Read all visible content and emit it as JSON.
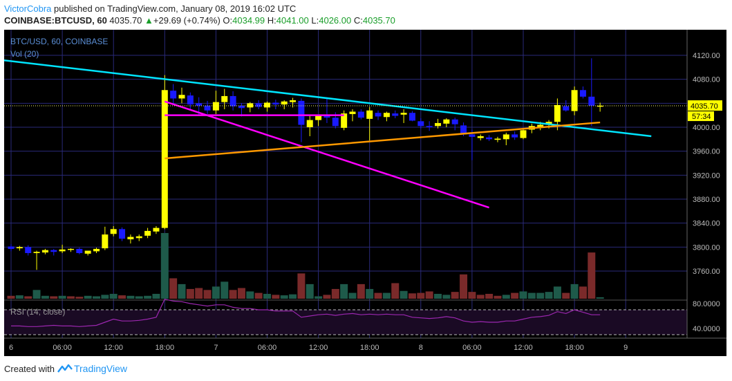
{
  "header": {
    "author": "VictorCobra",
    "published": "published on TradingView.com, January 08, 2019 16:02 UTC",
    "symbol": "COINBASE:BTCUSD, 60",
    "last": "4035.70",
    "change": "+29.69 (+0.74%)",
    "open_label": "O:",
    "open": "4034.99",
    "high_label": "H:",
    "high": "4041.00",
    "low_label": "L:",
    "low": "4026.00",
    "close_label": "C:",
    "close": "4035.70"
  },
  "footer": {
    "created": "Created with",
    "brand": "TradingView"
  },
  "colors": {
    "background": "#000000",
    "grid": "#2a2a7a",
    "bull": "#ffff00",
    "bear": "#1a1aff",
    "vol_bull": "#1e5a4a",
    "vol_bear": "#7a2a2a",
    "cyan_line": "#00e5ff",
    "magenta_line": "#ff00ff",
    "orange_line": "#ff9900",
    "rsi_line": "#9c27b0",
    "price_tag": "#ffff00",
    "axis_text": "#bdbdbd"
  },
  "chart_data": {
    "type": "candlestick",
    "title": "BTC/USD, 60, COINBASE",
    "volume_label": "Vol (20)",
    "rsi_label": "RSI (14, close)",
    "price_tag": "4035.70",
    "time_tag": "57:34",
    "ylim": [
      3730,
      4130
    ],
    "y_ticks": [
      "4120.00",
      "4080.00",
      "4040.00",
      "4000.00",
      "3960.00",
      "3920.00",
      "3880.00",
      "3840.00",
      "3800.00",
      "3760.00"
    ],
    "rsi_ticks": [
      "80.0000",
      "40.0000"
    ],
    "rsi_ylim": [
      20,
      100
    ],
    "x_ticks": [
      {
        "i": 0,
        "label": "6"
      },
      {
        "i": 6,
        "label": "06:00"
      },
      {
        "i": 12,
        "label": "12:00"
      },
      {
        "i": 18,
        "label": "18:00"
      },
      {
        "i": 24,
        "label": "7"
      },
      {
        "i": 30,
        "label": "06:00"
      },
      {
        "i": 36,
        "label": "12:00"
      },
      {
        "i": 42,
        "label": "18:00"
      },
      {
        "i": 48,
        "label": "8"
      },
      {
        "i": 54,
        "label": "06:00"
      },
      {
        "i": 60,
        "label": "12:00"
      },
      {
        "i": 66,
        "label": "18:00"
      },
      {
        "i": 72,
        "label": "9"
      }
    ],
    "candles": [
      {
        "o": 3801,
        "h": 3805,
        "l": 3793,
        "c": 3797
      },
      {
        "o": 3798,
        "h": 3802,
        "l": 3794,
        "c": 3800
      },
      {
        "o": 3800,
        "h": 3803,
        "l": 3786,
        "c": 3790
      },
      {
        "o": 3790,
        "h": 3794,
        "l": 3762,
        "c": 3792
      },
      {
        "o": 3791,
        "h": 3797,
        "l": 3788,
        "c": 3795
      },
      {
        "o": 3795,
        "h": 3797,
        "l": 3786,
        "c": 3792
      },
      {
        "o": 3793,
        "h": 3804,
        "l": 3790,
        "c": 3796
      },
      {
        "o": 3796,
        "h": 3798,
        "l": 3792,
        "c": 3797
      },
      {
        "o": 3797,
        "h": 3799,
        "l": 3788,
        "c": 3790
      },
      {
        "o": 3789,
        "h": 3794,
        "l": 3786,
        "c": 3794
      },
      {
        "o": 3793,
        "h": 3799,
        "l": 3790,
        "c": 3797
      },
      {
        "o": 3798,
        "h": 3834,
        "l": 3795,
        "c": 3821
      },
      {
        "o": 3822,
        "h": 3835,
        "l": 3818,
        "c": 3830
      },
      {
        "o": 3830,
        "h": 3833,
        "l": 3810,
        "c": 3814
      },
      {
        "o": 3813,
        "h": 3821,
        "l": 3806,
        "c": 3817
      },
      {
        "o": 3815,
        "h": 3821,
        "l": 3810,
        "c": 3818
      },
      {
        "o": 3819,
        "h": 3832,
        "l": 3815,
        "c": 3827
      },
      {
        "o": 3826,
        "h": 3835,
        "l": 3822,
        "c": 3832
      },
      {
        "o": 3832,
        "h": 4087,
        "l": 3830,
        "c": 4062
      },
      {
        "o": 4061,
        "h": 4072,
        "l": 4040,
        "c": 4048
      },
      {
        "o": 4048,
        "h": 4066,
        "l": 4040,
        "c": 4054
      },
      {
        "o": 4053,
        "h": 4058,
        "l": 4030,
        "c": 4038
      },
      {
        "o": 4040,
        "h": 4050,
        "l": 4020,
        "c": 4036
      },
      {
        "o": 4036,
        "h": 4044,
        "l": 4022,
        "c": 4028
      },
      {
        "o": 4028,
        "h": 4061,
        "l": 4022,
        "c": 4042
      },
      {
        "o": 4042,
        "h": 4064,
        "l": 4030,
        "c": 4052
      },
      {
        "o": 4052,
        "h": 4060,
        "l": 4028,
        "c": 4035
      },
      {
        "o": 4036,
        "h": 4040,
        "l": 4018,
        "c": 4032
      },
      {
        "o": 4033,
        "h": 4042,
        "l": 4025,
        "c": 4040
      },
      {
        "o": 4040,
        "h": 4045,
        "l": 4030,
        "c": 4034
      },
      {
        "o": 4033,
        "h": 4043,
        "l": 4026,
        "c": 4041
      },
      {
        "o": 4041,
        "h": 4046,
        "l": 4030,
        "c": 4038
      },
      {
        "o": 4038,
        "h": 4045,
        "l": 4030,
        "c": 4043
      },
      {
        "o": 4042,
        "h": 4049,
        "l": 4033,
        "c": 4045
      },
      {
        "o": 4044,
        "h": 4048,
        "l": 3975,
        "c": 4004
      },
      {
        "o": 4000,
        "h": 4020,
        "l": 3985,
        "c": 4012
      },
      {
        "o": 4012,
        "h": 4020,
        "l": 4002,
        "c": 4020
      },
      {
        "o": 4021,
        "h": 4050,
        "l": 4007,
        "c": 4016
      },
      {
        "o": 4016,
        "h": 4025,
        "l": 3998,
        "c": 4002
      },
      {
        "o": 3999,
        "h": 4028,
        "l": 3995,
        "c": 4023
      },
      {
        "o": 4022,
        "h": 4030,
        "l": 4010,
        "c": 4026
      },
      {
        "o": 4026,
        "h": 4030,
        "l": 4013,
        "c": 4016
      },
      {
        "o": 4014,
        "h": 4034,
        "l": 3978,
        "c": 4028
      },
      {
        "o": 4024,
        "h": 4028,
        "l": 4012,
        "c": 4018
      },
      {
        "o": 4017,
        "h": 4026,
        "l": 4010,
        "c": 4024
      },
      {
        "o": 4023,
        "h": 4028,
        "l": 4015,
        "c": 4019
      },
      {
        "o": 4021,
        "h": 4030,
        "l": 4007,
        "c": 4024
      },
      {
        "o": 4024,
        "h": 4027,
        "l": 4010,
        "c": 4011
      },
      {
        "o": 4010,
        "h": 4015,
        "l": 3998,
        "c": 4002
      },
      {
        "o": 4002,
        "h": 4010,
        "l": 3994,
        "c": 4000
      },
      {
        "o": 4002,
        "h": 4014,
        "l": 3998,
        "c": 4007
      },
      {
        "o": 4006,
        "h": 4015,
        "l": 4000,
        "c": 4013
      },
      {
        "o": 4013,
        "h": 4016,
        "l": 3995,
        "c": 4005
      },
      {
        "o": 4003,
        "h": 4008,
        "l": 3985,
        "c": 3988
      },
      {
        "o": 3988,
        "h": 3996,
        "l": 3945,
        "c": 3984
      },
      {
        "o": 3982,
        "h": 3988,
        "l": 3978,
        "c": 3985
      },
      {
        "o": 3983,
        "h": 3987,
        "l": 3977,
        "c": 3980
      },
      {
        "o": 3979,
        "h": 3984,
        "l": 3975,
        "c": 3981
      },
      {
        "o": 3980,
        "h": 3991,
        "l": 3970,
        "c": 3988
      },
      {
        "o": 3988,
        "h": 3993,
        "l": 3979,
        "c": 3983
      },
      {
        "o": 3982,
        "h": 3999,
        "l": 3980,
        "c": 3995
      },
      {
        "o": 3996,
        "h": 4006,
        "l": 3990,
        "c": 4002
      },
      {
        "o": 4000,
        "h": 4009,
        "l": 3995,
        "c": 4004
      },
      {
        "o": 4004,
        "h": 4012,
        "l": 3998,
        "c": 4009
      },
      {
        "o": 4009,
        "h": 4048,
        "l": 3995,
        "c": 4037
      },
      {
        "o": 4035,
        "h": 4045,
        "l": 4026,
        "c": 4028
      },
      {
        "o": 4027,
        "h": 4068,
        "l": 4020,
        "c": 4062
      },
      {
        "o": 4062,
        "h": 4068,
        "l": 4048,
        "c": 4051
      },
      {
        "o": 4051,
        "h": 4115,
        "l": 4002,
        "c": 4036
      },
      {
        "o": 4035,
        "h": 4041,
        "l": 4026,
        "c": 4036
      }
    ],
    "candle_x": [
      0,
      1,
      2,
      3,
      4,
      5,
      6,
      7,
      8,
      9,
      10,
      11,
      12,
      13,
      14,
      15,
      16,
      17,
      18,
      19,
      20,
      21,
      22,
      23,
      24,
      25,
      26,
      27,
      28,
      29,
      30,
      31,
      32,
      33,
      34,
      35,
      36,
      37,
      38,
      39,
      40,
      41,
      42,
      43,
      44,
      45,
      46,
      47,
      48,
      49,
      50,
      51,
      52,
      53,
      54,
      55,
      56,
      57,
      58,
      59,
      60,
      61,
      62,
      63,
      64,
      65,
      66,
      67,
      68,
      69
    ],
    "volume": [
      {
        "v": 6,
        "up": false
      },
      {
        "v": 7,
        "up": true
      },
      {
        "v": 5,
        "up": false
      },
      {
        "v": 18,
        "up": true
      },
      {
        "v": 6,
        "up": true
      },
      {
        "v": 5,
        "up": false
      },
      {
        "v": 6,
        "up": true
      },
      {
        "v": 5,
        "up": false
      },
      {
        "v": 4,
        "up": false
      },
      {
        "v": 6,
        "up": true
      },
      {
        "v": 5,
        "up": true
      },
      {
        "v": 8,
        "up": true
      },
      {
        "v": 10,
        "up": true
      },
      {
        "v": 7,
        "up": false
      },
      {
        "v": 6,
        "up": true
      },
      {
        "v": 5,
        "up": true
      },
      {
        "v": 6,
        "up": true
      },
      {
        "v": 10,
        "up": true
      },
      {
        "v": 135,
        "up": true
      },
      {
        "v": 42,
        "up": false
      },
      {
        "v": 30,
        "up": true
      },
      {
        "v": 20,
        "up": false
      },
      {
        "v": 22,
        "up": false
      },
      {
        "v": 18,
        "up": false
      },
      {
        "v": 25,
        "up": true
      },
      {
        "v": 35,
        "up": true
      },
      {
        "v": 18,
        "up": false
      },
      {
        "v": 22,
        "up": false
      },
      {
        "v": 15,
        "up": true
      },
      {
        "v": 12,
        "up": false
      },
      {
        "v": 10,
        "up": true
      },
      {
        "v": 8,
        "up": false
      },
      {
        "v": 7,
        "up": true
      },
      {
        "v": 9,
        "up": true
      },
      {
        "v": 52,
        "up": false
      },
      {
        "v": 30,
        "up": true
      },
      {
        "v": 5,
        "up": true
      },
      {
        "v": 8,
        "up": false
      },
      {
        "v": 20,
        "up": false
      },
      {
        "v": 30,
        "up": true
      },
      {
        "v": 12,
        "up": true
      },
      {
        "v": 30,
        "up": false
      },
      {
        "v": 20,
        "up": true
      },
      {
        "v": 12,
        "up": false
      },
      {
        "v": 12,
        "up": true
      },
      {
        "v": 32,
        "up": false
      },
      {
        "v": 16,
        "up": true
      },
      {
        "v": 11,
        "up": false
      },
      {
        "v": 12,
        "up": false
      },
      {
        "v": 15,
        "up": false
      },
      {
        "v": 10,
        "up": true
      },
      {
        "v": 8,
        "up": true
      },
      {
        "v": 14,
        "up": false
      },
      {
        "v": 50,
        "up": false
      },
      {
        "v": 14,
        "up": false
      },
      {
        "v": 8,
        "up": false
      },
      {
        "v": 10,
        "up": false
      },
      {
        "v": 6,
        "up": false
      },
      {
        "v": 8,
        "up": true
      },
      {
        "v": 12,
        "up": false
      },
      {
        "v": 15,
        "up": true
      },
      {
        "v": 12,
        "up": true
      },
      {
        "v": 12,
        "up": true
      },
      {
        "v": 14,
        "up": true
      },
      {
        "v": 25,
        "up": true
      },
      {
        "v": 12,
        "up": false
      },
      {
        "v": 30,
        "up": true
      },
      {
        "v": 25,
        "up": false
      },
      {
        "v": 95,
        "up": false
      },
      {
        "v": 3,
        "up": true
      }
    ],
    "rsi": [
      44,
      44,
      43,
      43,
      44,
      45,
      44,
      44,
      43,
      44,
      45,
      50,
      55,
      52,
      52,
      53,
      55,
      58,
      87,
      84,
      83,
      80,
      78,
      76,
      78,
      78,
      74,
      72,
      72,
      70,
      70,
      68,
      68,
      68,
      58,
      60,
      62,
      63,
      61,
      63,
      64,
      62,
      63,
      62,
      63,
      62,
      62,
      58,
      57,
      56,
      57,
      59,
      57,
      52,
      50,
      51,
      50,
      50,
      52,
      52,
      55,
      58,
      59,
      61,
      67,
      64,
      70,
      66,
      62,
      62
    ],
    "trendlines": [
      {
        "name": "cyan-trendline",
        "color": "#00e5ff",
        "x1": -1,
        "y1": 4112,
        "x2": 75,
        "y2": 3985
      },
      {
        "name": "magenta-diagonal-line",
        "color": "#ff00ff",
        "x1": 18,
        "y1": 4043,
        "x2": 56,
        "y2": 3866
      },
      {
        "name": "magenta-horizontal-line",
        "color": "#ff00ff",
        "x1": 18,
        "y1": 4020,
        "x2": 39,
        "y2": 4020
      },
      {
        "name": "orange-trendline",
        "color": "#ff9900",
        "x1": 18,
        "y1": 3948,
        "x2": 69,
        "y2": 4008
      }
    ]
  }
}
